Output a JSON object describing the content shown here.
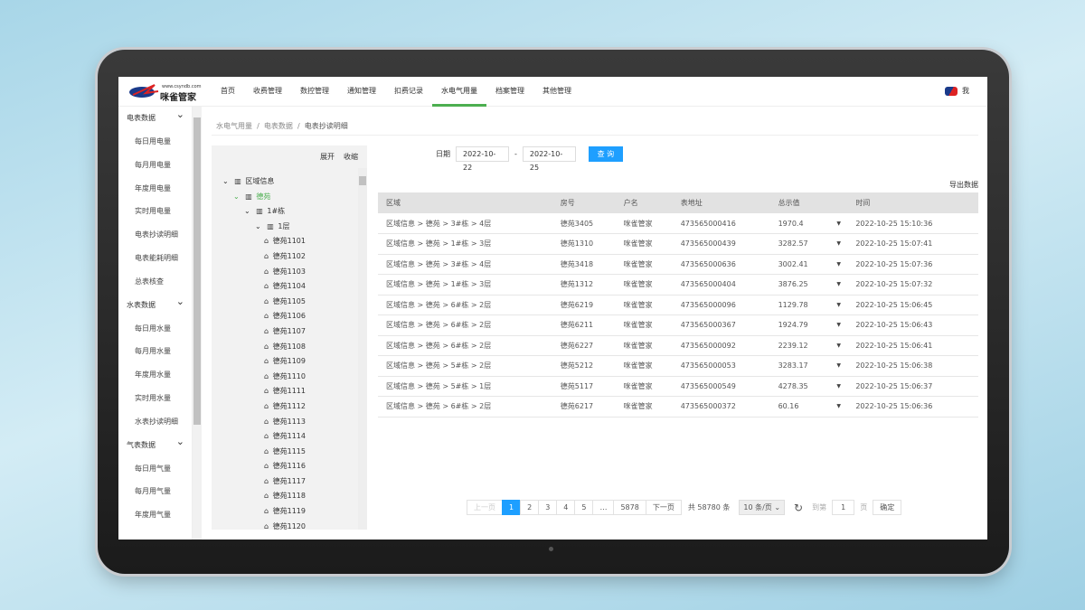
{
  "header": {
    "logo_url": "www.csyndb.com",
    "logo_name": "咪雀管家",
    "nav": [
      "首页",
      "收费管理",
      "数控管理",
      "通知管理",
      "扣费记录",
      "水电气用量",
      "档案管理",
      "其他管理"
    ],
    "active": "水电气用量",
    "user": "我"
  },
  "sidebar": [
    {
      "group": "电表数据",
      "items": [
        "每日用电量",
        "每月用电量",
        "年度用电量",
        "实时用电量",
        "电表抄读明细",
        "电表能耗明细",
        "总表核查"
      ]
    },
    {
      "group": "水表数据",
      "items": [
        "每日用水量",
        "每月用水量",
        "年度用水量",
        "实时用水量",
        "水表抄读明细"
      ]
    },
    {
      "group": "气表数据",
      "items": [
        "每日用气量",
        "每月用气量",
        "年度用气量"
      ]
    }
  ],
  "breadcrumb": [
    "水电气用量",
    "电表数据",
    "电表抄读明细"
  ],
  "tree": {
    "expand": "展开",
    "collapse": "收缩",
    "root": "区域信息",
    "l1": "德苑",
    "l2": "1#栋",
    "l3": "1层",
    "rooms": [
      "德苑1101",
      "德苑1102",
      "德苑1103",
      "德苑1104",
      "德苑1105",
      "德苑1106",
      "德苑1107",
      "德苑1108",
      "德苑1109",
      "德苑1110",
      "德苑1111",
      "德苑1112",
      "德苑1113",
      "德苑1114",
      "德苑1115",
      "德苑1116",
      "德苑1117",
      "德苑1118",
      "德苑1119",
      "德苑1120"
    ]
  },
  "filter": {
    "label": "日期",
    "start": "2022-10-22",
    "end": "2022-10-25",
    "sep": "-",
    "query": "查 询"
  },
  "export": "导出数据",
  "table": {
    "columns": [
      "区域",
      "房号",
      "户名",
      "表地址",
      "总示值",
      "",
      "时间"
    ],
    "rows": [
      [
        "区域信息 > 德苑 > 3#栋 > 4层",
        "德苑3405",
        "咪雀管家",
        "473565000416",
        "1970.4",
        "▼",
        "2022-10-25 15:10:36"
      ],
      [
        "区域信息 > 德苑 > 1#栋 > 3层",
        "德苑1310",
        "咪雀管家",
        "473565000439",
        "3282.57",
        "▼",
        "2022-10-25 15:07:41"
      ],
      [
        "区域信息 > 德苑 > 3#栋 > 4层",
        "德苑3418",
        "咪雀管家",
        "473565000636",
        "3002.41",
        "▼",
        "2022-10-25 15:07:36"
      ],
      [
        "区域信息 > 德苑 > 1#栋 > 3层",
        "德苑1312",
        "咪雀管家",
        "473565000404",
        "3876.25",
        "▼",
        "2022-10-25 15:07:32"
      ],
      [
        "区域信息 > 德苑 > 6#栋 > 2层",
        "德苑6219",
        "咪雀管家",
        "473565000096",
        "1129.78",
        "▼",
        "2022-10-25 15:06:45"
      ],
      [
        "区域信息 > 德苑 > 6#栋 > 2层",
        "德苑6211",
        "咪雀管家",
        "473565000367",
        "1924.79",
        "▼",
        "2022-10-25 15:06:43"
      ],
      [
        "区域信息 > 德苑 > 6#栋 > 2层",
        "德苑6227",
        "咪雀管家",
        "473565000092",
        "2239.12",
        "▼",
        "2022-10-25 15:06:41"
      ],
      [
        "区域信息 > 德苑 > 5#栋 > 2层",
        "德苑5212",
        "咪雀管家",
        "473565000053",
        "3283.17",
        "▼",
        "2022-10-25 15:06:38"
      ],
      [
        "区域信息 > 德苑 > 5#栋 > 1层",
        "德苑5117",
        "咪雀管家",
        "473565000549",
        "4278.35",
        "▼",
        "2022-10-25 15:06:37"
      ],
      [
        "区域信息 > 德苑 > 6#栋 > 2层",
        "德苑6217",
        "咪雀管家",
        "473565000372",
        "60.16",
        "▼",
        "2022-10-25 15:06:36"
      ]
    ]
  },
  "pagination": {
    "prev": "上一页",
    "pages": [
      "1",
      "2",
      "3",
      "4",
      "5",
      "…",
      "5878"
    ],
    "next": "下一页",
    "total": "共 58780 条",
    "per_page": "10 条/页 ⌄",
    "refresh": "↻",
    "goto": "到第",
    "page_value": "1",
    "page_unit": "页",
    "confirm": "确定"
  }
}
